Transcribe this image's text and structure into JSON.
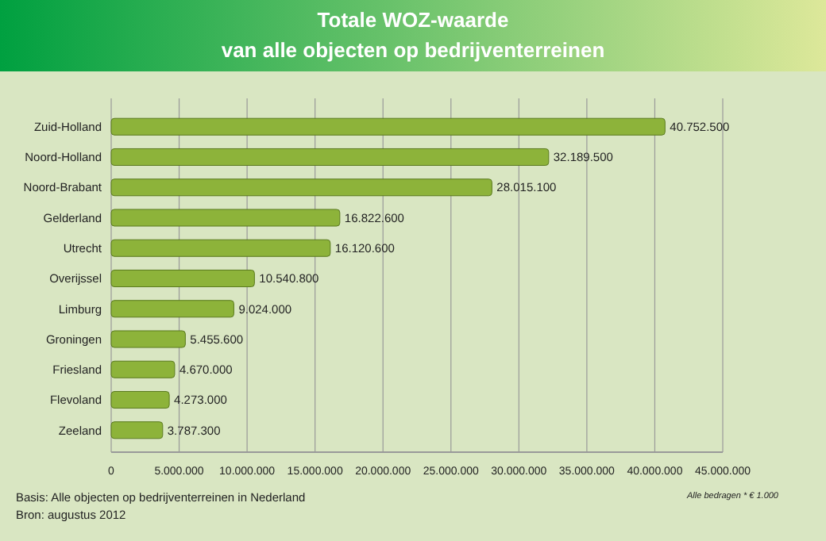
{
  "chart_data": {
    "type": "bar",
    "orientation": "horizontal",
    "title": "Totale WOZ-waarde",
    "subtitle": "van alle objecten op bedrijventerreinen",
    "categories": [
      "Zuid-Holland",
      "Noord-Holland",
      "Noord-Brabant",
      "Gelderland",
      "Utrecht",
      "Overijssel",
      "Limburg",
      "Groningen",
      "Friesland",
      "Flevoland",
      "Zeeland"
    ],
    "values": [
      40752500,
      32189500,
      28015100,
      16822600,
      16120600,
      10540800,
      9024000,
      5455600,
      4670000,
      4273000,
      3787300
    ],
    "value_labels": [
      "40.752.500",
      "32.189.500",
      "28.015.100",
      "16.822.600",
      "16.120.600",
      "10.540.800",
      "9.024.000",
      "5.455.600",
      "4.670.000",
      "4.273.000",
      "3.787.300"
    ],
    "color": "#8db33a",
    "xlim": [
      0,
      45000000
    ],
    "xticks": [
      0,
      {
        "value": 5000000,
        "label": "5.000.000"
      },
      {
        "value": 10000000,
        "label": "10.000.000"
      },
      {
        "value": 15000000,
        "label": "15.000.000"
      },
      {
        "value": 20000000,
        "label": "20.000.000"
      },
      {
        "value": 25000000,
        "label": "25.000.000"
      },
      {
        "value": 30000000,
        "label": "30.000.000"
      },
      {
        "value": 35000000,
        "label": "35.000.000"
      },
      {
        "value": 40000000,
        "label": "40.000.000"
      },
      {
        "value": 45000000,
        "label": "45.000.000"
      }
    ],
    "grid": "x",
    "annotations": [
      "Alle bedragen * € 1.000",
      "Basis: Alle objecten op bedrijventerreinen  in Nederland",
      "Bron: augustus 2012"
    ]
  }
}
